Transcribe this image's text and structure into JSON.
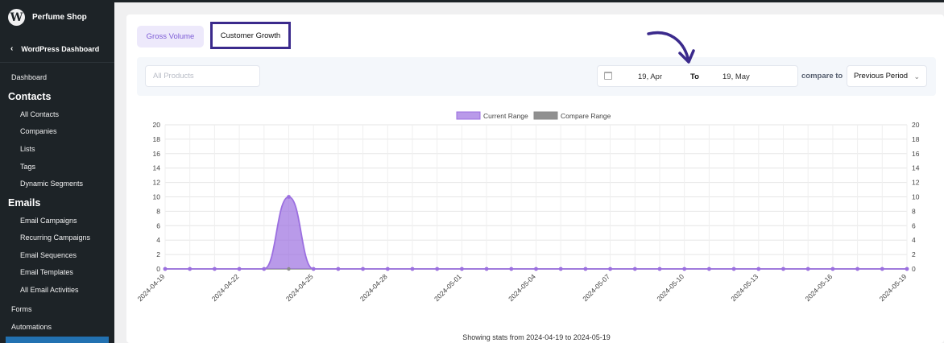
{
  "sidebar": {
    "site_name": "Perfume Shop",
    "logo_letter": "W",
    "back_label": "WordPress Dashboard",
    "items": [
      {
        "label": "Dashboard",
        "kind": "item0"
      },
      {
        "label": "Contacts",
        "kind": "head"
      },
      {
        "label": "All Contacts",
        "kind": "sub"
      },
      {
        "label": "Companies",
        "kind": "sub"
      },
      {
        "label": "Lists",
        "kind": "sub"
      },
      {
        "label": "Tags",
        "kind": "sub"
      },
      {
        "label": "Dynamic Segments",
        "kind": "sub"
      },
      {
        "label": "Emails",
        "kind": "head"
      },
      {
        "label": "Email Campaigns",
        "kind": "sub"
      },
      {
        "label": "Recurring Campaigns",
        "kind": "sub"
      },
      {
        "label": "Email Sequences",
        "kind": "sub"
      },
      {
        "label": "Email Templates",
        "kind": "sub"
      },
      {
        "label": "All Email Activities",
        "kind": "sub"
      },
      {
        "label": "Forms",
        "kind": "item0"
      },
      {
        "label": "Automations",
        "kind": "item0"
      }
    ]
  },
  "tabs": {
    "gross_volume": "Gross Volume",
    "customer_growth": "Customer Growth"
  },
  "filters": {
    "products_placeholder": "All Products",
    "date_from": "19, Apr",
    "date_to_label": "To",
    "date_to": "19, May",
    "compare_label": "compare to",
    "compare_value": "Previous Period"
  },
  "colors": {
    "current_range": "#9b6fe0",
    "compare_range": "#8a8a8a",
    "accent": "#7c5bd6",
    "highlight_border": "#3b2a8c"
  },
  "chart_data": {
    "type": "area",
    "legend": [
      "Current Range",
      "Compare Range"
    ],
    "legend_position": "top-center",
    "x": [
      "2024-04-19",
      "2024-04-20",
      "2024-04-21",
      "2024-04-22",
      "2024-04-23",
      "2024-04-24",
      "2024-04-25",
      "2024-04-26",
      "2024-04-27",
      "2024-04-28",
      "2024-04-29",
      "2024-04-30",
      "2024-05-01",
      "2024-05-02",
      "2024-05-03",
      "2024-05-04",
      "2024-05-05",
      "2024-05-06",
      "2024-05-07",
      "2024-05-08",
      "2024-05-09",
      "2024-05-10",
      "2024-05-11",
      "2024-05-12",
      "2024-05-13",
      "2024-05-14",
      "2024-05-15",
      "2024-05-16",
      "2024-05-17",
      "2024-05-18",
      "2024-05-19"
    ],
    "x_tick_labels": [
      "2024-04-19",
      "2024-04-22",
      "2024-04-25",
      "2024-04-28",
      "2024-05-01",
      "2024-05-04",
      "2024-05-07",
      "2024-05-10",
      "2024-05-13",
      "2024-05-16",
      "2024-05-19"
    ],
    "series": [
      {
        "name": "Current Range",
        "values": [
          0,
          0,
          0,
          0,
          0,
          10,
          0,
          0,
          0,
          0,
          0,
          0,
          0,
          0,
          0,
          0,
          0,
          0,
          0,
          0,
          0,
          0,
          0,
          0,
          0,
          0,
          0,
          0,
          0,
          0,
          0
        ]
      },
      {
        "name": "Compare Range",
        "values": [
          0,
          0,
          0,
          0,
          0,
          0,
          0,
          0,
          0,
          0,
          0,
          0,
          0,
          0,
          0,
          0,
          0,
          0,
          0,
          0,
          0,
          0,
          0,
          0,
          0,
          0,
          0,
          0,
          0,
          0,
          0
        ]
      }
    ],
    "y_ticks": [
      0,
      2,
      4,
      6,
      8,
      10,
      12,
      14,
      16,
      18,
      20
    ],
    "ylim": [
      0,
      20
    ],
    "grid": true
  },
  "footer": {
    "stats_text": "Showing stats from 2024-04-19 to 2024-05-19"
  }
}
